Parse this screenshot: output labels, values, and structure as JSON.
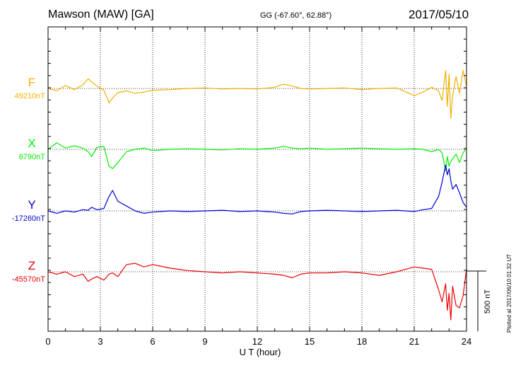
{
  "header": {
    "station": "Mawson (MAW)  [GA]",
    "coords": "GG (-67.60°,  62.88°)",
    "date": "2017/05/10"
  },
  "footer": {
    "plotted": "Plotted at 2017/06/10 01:32 UT"
  },
  "chart_data": {
    "type": "line",
    "title": "",
    "xlabel": "U T (hour)",
    "ylabel": "",
    "xlim": [
      0,
      24
    ],
    "x_ticks": [
      0,
      3,
      6,
      9,
      12,
      15,
      18,
      21,
      24
    ],
    "x_tick_labels": [
      "0",
      "3",
      "6",
      "9",
      "12",
      "15",
      "18",
      "21",
      "24"
    ],
    "grid": "vertical dotted lines every 3 hours",
    "scale_bar": {
      "label": "500 nT",
      "value_nT": 500
    },
    "series": [
      {
        "name": "F",
        "baseline_label": "49210nT",
        "baseline_nT": 49210,
        "color": "#f5b000",
        "x": [
          0,
          0.5,
          1,
          1.5,
          2,
          2.3,
          2.5,
          2.8,
          3.2,
          3.5,
          3.7,
          4,
          4.5,
          5,
          5.5,
          6,
          7,
          8,
          9,
          10,
          11,
          12,
          13,
          13.5,
          14,
          14.5,
          15,
          16,
          17,
          18,
          19,
          20,
          21,
          21.5,
          22,
          22.4,
          22.6,
          22.8,
          22.9,
          23,
          23.1,
          23.2,
          23.4,
          23.6,
          23.8,
          24
        ],
        "values": [
          0,
          -20,
          25,
          -10,
          30,
          80,
          55,
          20,
          -15,
          -120,
          -80,
          -35,
          -20,
          -40,
          -30,
          -15,
          -10,
          0,
          5,
          -5,
          0,
          -5,
          10,
          35,
          20,
          0,
          -5,
          0,
          5,
          -10,
          0,
          5,
          -60,
          -30,
          10,
          -20,
          -100,
          150,
          -150,
          120,
          -250,
          -60,
          100,
          -40,
          150,
          20
        ]
      },
      {
        "name": "X",
        "baseline_label": "6790nT",
        "baseline_nT": 6790,
        "color": "#00ee00",
        "x": [
          0,
          0.5,
          1,
          1.5,
          2,
          2.3,
          2.5,
          2.8,
          3.2,
          3.5,
          3.7,
          4,
          4.5,
          5,
          5.5,
          6,
          7,
          8,
          9,
          10,
          11,
          12,
          13,
          13.5,
          14,
          14.5,
          15,
          16,
          17,
          18,
          19,
          20,
          21,
          21.5,
          22,
          22.4,
          22.6,
          22.8,
          22.9,
          23,
          23.1,
          23.2,
          23.4,
          23.6,
          23.8,
          24
        ],
        "values": [
          0,
          55,
          10,
          30,
          10,
          -20,
          -60,
          15,
          25,
          -140,
          -160,
          -110,
          -20,
          0,
          10,
          -10,
          0,
          5,
          0,
          -5,
          5,
          0,
          10,
          25,
          10,
          5,
          10,
          0,
          5,
          10,
          5,
          0,
          5,
          0,
          -20,
          0,
          -30,
          -180,
          -60,
          -140,
          -100,
          -80,
          -40,
          -110,
          -30,
          10
        ]
      },
      {
        "name": "Y",
        "baseline_label": "-17260nT",
        "baseline_nT": -17260,
        "color": "#0000dd",
        "x": [
          0,
          0.5,
          1,
          1.5,
          2,
          2.3,
          2.5,
          2.8,
          3.2,
          3.5,
          3.7,
          4,
          4.5,
          5,
          5.5,
          6,
          7,
          8,
          9,
          10,
          11,
          12,
          13,
          13.5,
          14,
          14.5,
          15,
          16,
          17,
          18,
          19,
          20,
          21,
          21.5,
          22,
          22.4,
          22.6,
          22.8,
          22.9,
          23,
          23.1,
          23.2,
          23.4,
          23.6,
          23.8,
          24
        ],
        "values": [
          0,
          -20,
          0,
          -10,
          10,
          5,
          30,
          10,
          20,
          120,
          170,
          80,
          40,
          0,
          -20,
          -10,
          0,
          -5,
          0,
          5,
          -5,
          0,
          -10,
          -20,
          -25,
          -5,
          0,
          5,
          0,
          -5,
          0,
          5,
          -5,
          10,
          20,
          120,
          240,
          380,
          300,
          350,
          250,
          180,
          220,
          150,
          70,
          30
        ]
      },
      {
        "name": "Z",
        "baseline_label": "-45570nT",
        "baseline_nT": -45570,
        "color": "#ee0000",
        "x": [
          0,
          0.5,
          1,
          1.5,
          2,
          2.3,
          2.5,
          2.8,
          3.2,
          3.5,
          3.7,
          4,
          4.5,
          5,
          5.5,
          6,
          7,
          8,
          9,
          10,
          11,
          12,
          13,
          13.5,
          14,
          14.5,
          15,
          16,
          17,
          18,
          19,
          20,
          21,
          21.5,
          22,
          22.4,
          22.6,
          22.8,
          22.9,
          23,
          23.1,
          23.2,
          23.4,
          23.6,
          23.8,
          24
        ],
        "values": [
          0,
          -20,
          0,
          -40,
          -20,
          -80,
          -60,
          -40,
          -70,
          -20,
          -10,
          -40,
          60,
          70,
          40,
          60,
          30,
          10,
          0,
          -10,
          0,
          -10,
          -20,
          -30,
          -50,
          -20,
          -10,
          -10,
          0,
          -10,
          -30,
          0,
          40,
          30,
          20,
          -150,
          -250,
          -100,
          -320,
          -180,
          -400,
          -120,
          -280,
          -300,
          -200,
          20
        ]
      }
    ]
  }
}
